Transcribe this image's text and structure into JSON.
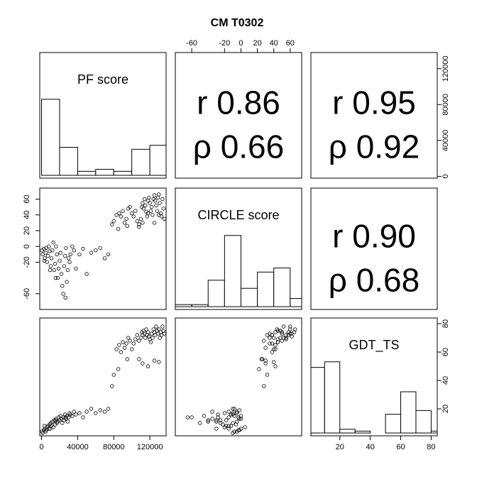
{
  "chart_data": {
    "type": "scatter",
    "title": "CM T0302",
    "variables": [
      "PF score",
      "CIRCLE score",
      "GDT_TS"
    ],
    "axes": {
      "PF score": {
        "range": [
          -2000,
          138000
        ],
        "ticks": [
          0,
          40000,
          80000,
          120000
        ]
      },
      "CIRCLE score": {
        "range": [
          -80,
          74
        ],
        "ticks": [
          -60,
          -20,
          0,
          20,
          40,
          60
        ]
      },
      "GDT_TS": {
        "range": [
          1,
          84
        ],
        "ticks": [
          20,
          40,
          60,
          80
        ]
      }
    },
    "correlations": [
      {
        "pair": [
          "PF score",
          "CIRCLE score"
        ],
        "r": "r 0.86",
        "rho": "ρ 0.66"
      },
      {
        "pair": [
          "PF score",
          "GDT_TS"
        ],
        "r": "r 0.95",
        "rho": "ρ 0.92"
      },
      {
        "pair": [
          "CIRCLE score",
          "GDT_TS"
        ],
        "r": "r 0.90",
        "rho": "ρ 0.68"
      }
    ],
    "histograms": {
      "PF score": {
        "edges": [
          0,
          20000,
          40000,
          60000,
          80000,
          100000,
          120000,
          140000
        ],
        "counts": [
          38,
          14,
          2,
          3,
          2,
          13,
          15
        ],
        "max": 40
      },
      "CIRCLE score": {
        "edges": [
          -80,
          -60,
          -40,
          -20,
          0,
          20,
          40,
          60,
          80
        ],
        "counts": [
          1,
          1,
          13,
          35,
          9,
          17,
          19,
          4
        ],
        "max": 38
      },
      "GDT_TS": {
        "edges": [
          0,
          10,
          20,
          30,
          40,
          50,
          60,
          70,
          80,
          90
        ],
        "counts": [
          35,
          38,
          2,
          1,
          0,
          10,
          22,
          12,
          1
        ],
        "max": 40
      }
    },
    "points": [
      [
        500,
        -5,
        4
      ],
      [
        1200,
        -10,
        3
      ],
      [
        2500,
        -3,
        5
      ],
      [
        3500,
        -15,
        6
      ],
      [
        4500,
        -8,
        4
      ],
      [
        5200,
        -2,
        5
      ],
      [
        6000,
        -20,
        7
      ],
      [
        7000,
        -12,
        8
      ],
      [
        8000,
        0,
        6
      ],
      [
        9000,
        -6,
        9
      ],
      [
        10000,
        -25,
        10
      ],
      [
        11000,
        -15,
        8
      ],
      [
        12000,
        -5,
        11
      ],
      [
        13000,
        5,
        7
      ],
      [
        14000,
        -30,
        12
      ],
      [
        15000,
        -22,
        9
      ],
      [
        16000,
        0,
        13
      ],
      [
        17000,
        -10,
        10
      ],
      [
        18000,
        -40,
        11
      ],
      [
        19000,
        -28,
        14
      ],
      [
        20000,
        -18,
        12
      ],
      [
        21000,
        -8,
        15
      ],
      [
        22000,
        -35,
        13
      ],
      [
        23000,
        -50,
        10
      ],
      [
        24000,
        -60,
        14
      ],
      [
        25000,
        -25,
        12
      ],
      [
        26000,
        -12,
        16
      ],
      [
        27000,
        -2,
        13
      ],
      [
        28000,
        -45,
        15
      ],
      [
        29000,
        -30,
        11
      ],
      [
        30000,
        -15,
        14
      ],
      [
        31000,
        -20,
        17
      ],
      [
        32000,
        -10,
        16
      ],
      [
        34000,
        0,
        15
      ],
      [
        36000,
        -5,
        18
      ],
      [
        38000,
        -28,
        16
      ],
      [
        42000,
        -10,
        17
      ],
      [
        46000,
        -3,
        14
      ],
      [
        50000,
        -35,
        18
      ],
      [
        55000,
        -8,
        20
      ],
      [
        60000,
        -5,
        17
      ],
      [
        65000,
        -2,
        19
      ],
      [
        70000,
        -15,
        18
      ],
      [
        74000,
        -10,
        20
      ],
      [
        78000,
        28,
        36
      ],
      [
        80000,
        32,
        44
      ],
      [
        83000,
        40,
        62
      ],
      [
        86000,
        42,
        65
      ],
      [
        88000,
        38,
        60
      ],
      [
        90000,
        45,
        67
      ],
      [
        92000,
        30,
        63
      ],
      [
        94000,
        35,
        66
      ],
      [
        96000,
        48,
        70
      ],
      [
        98000,
        50,
        68
      ],
      [
        100000,
        42,
        62
      ],
      [
        102000,
        38,
        66
      ],
      [
        104000,
        45,
        69
      ],
      [
        106000,
        32,
        72
      ],
      [
        108000,
        28,
        68
      ],
      [
        110000,
        35,
        70
      ],
      [
        111000,
        50,
        74
      ],
      [
        112000,
        55,
        72
      ],
      [
        113000,
        48,
        75
      ],
      [
        114000,
        60,
        73
      ],
      [
        115000,
        52,
        70
      ],
      [
        116000,
        44,
        76
      ],
      [
        117000,
        38,
        72
      ],
      [
        118000,
        58,
        74
      ],
      [
        119000,
        62,
        71
      ],
      [
        120000,
        55,
        69
      ],
      [
        121000,
        45,
        67
      ],
      [
        122000,
        50,
        73
      ],
      [
        123000,
        40,
        70
      ],
      [
        124000,
        60,
        76
      ],
      [
        125000,
        65,
        74
      ],
      [
        126000,
        58,
        72
      ],
      [
        127000,
        52,
        78
      ],
      [
        128000,
        45,
        75
      ],
      [
        129000,
        62,
        73
      ],
      [
        130000,
        66,
        76
      ],
      [
        131000,
        55,
        70
      ],
      [
        132000,
        42,
        74
      ],
      [
        133000,
        38,
        72
      ],
      [
        134000,
        60,
        78
      ],
      [
        135000,
        48,
        75
      ],
      [
        136000,
        35,
        73
      ],
      [
        108000,
        25,
        55
      ],
      [
        112000,
        30,
        52
      ],
      [
        118000,
        42,
        50
      ],
      [
        95000,
        26,
        55
      ],
      [
        85000,
        22,
        48
      ],
      [
        130000,
        40,
        53
      ],
      [
        125000,
        30,
        54
      ],
      [
        3000,
        -18,
        8
      ],
      [
        15500,
        -40,
        12
      ],
      [
        26500,
        -65,
        14
      ],
      [
        9500,
        -30,
        6
      ]
    ]
  }
}
